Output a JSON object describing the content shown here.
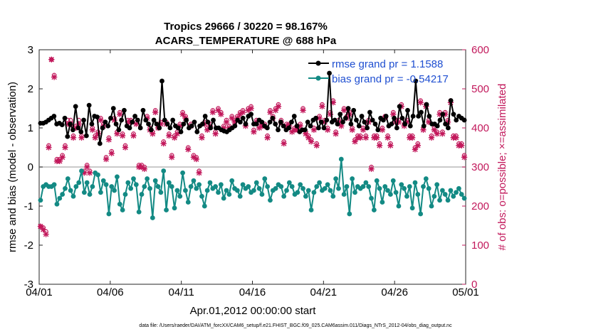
{
  "chart_data": {
    "type": "line",
    "title": "Tropics 29666 / 30220 = 98.167%",
    "subtitle": "ACARS_TEMPERATURE @ 688 hPa",
    "xlabel": "Apr.01,2012 00:00:00 start",
    "ylabel": "rmse and bias (model - observation)",
    "ylabel_right": "# of obs: o=possible; ×=assimilated",
    "footer": "data file: /Users/raeder/DAI/ATM_forcXX/CAM6_setup/f.e21.FHIST_BGC.f09_025.CAM6assim.011/Diags_NTrS_2012-04/obs_diag_output.nc",
    "xlim": [
      0,
      30
    ],
    "ylim": [
      -3,
      3
    ],
    "ylim_right": [
      0,
      600
    ],
    "x_tick_values": [
      0,
      5,
      10,
      15,
      20,
      25,
      30
    ],
    "x_tick_labels": [
      "04/01",
      "04/06",
      "04/11",
      "04/16",
      "04/21",
      "04/26",
      "05/01"
    ],
    "y_ticks": [
      "-3",
      "-2",
      "-1",
      "0",
      "1",
      "2",
      "3"
    ],
    "y_ticks_right": [
      "0",
      "100",
      "200",
      "300",
      "400",
      "500",
      "600"
    ],
    "legend": [
      "rmse grand pr = 1.1588",
      "bias grand pr = -0.54217"
    ],
    "colors": {
      "rmse": "#000000",
      "bias": "#138a84",
      "obs": "#c2185b",
      "zero": "#b8b8b8"
    },
    "series": [
      {
        "name": "rmse",
        "values": [
          1.12,
          1.12,
          1.15,
          1.2,
          1.25,
          1.3,
          1.1,
          1.12,
          1.08,
          1.25,
          0.78,
          1.1,
          0.95,
          1.55,
          1.0,
          0.9,
          1.2,
          0.8,
          1.58,
          1.1,
          1.3,
          1.28,
          0.6,
          1.0,
          1.15,
          1.05,
          1.25,
          1.5,
          1.1,
          0.95,
          1.2,
          1.45,
          1.05,
          1.0,
          1.15,
          1.3,
          1.2,
          1.0,
          1.45,
          1.2,
          1.1,
          0.95,
          1.2,
          1.1,
          1.0,
          2.2,
          1.2,
          1.1,
          1.0,
          1.2,
          1.05,
          1.0,
          0.9,
          1.1,
          1.2,
          1.0,
          1.05,
          1.15,
          0.9,
          1.05,
          1.1,
          1.3,
          1.15,
          1.0,
          1.2,
          1.0,
          1.0,
          0.95,
          0.92,
          0.9,
          0.95,
          1.0,
          1.05,
          1.2,
          1.15,
          1.25,
          1.1,
          1.3,
          1.35,
          1.1,
          1.1,
          1.2,
          1.15,
          1.05,
          1.0,
          1.15,
          1.25,
          1.1,
          0.95,
          1.15,
          1.05,
          0.95,
          1.0,
          1.15,
          1.3,
          1.05,
          0.9,
          0.95,
          0.95,
          1.15,
          1.05,
          1.2,
          1.25,
          1.0,
          1.15,
          1.0,
          1.2,
          2.4,
          1.15,
          1.2,
          1.1,
          1.35,
          1.15,
          1.25,
          1.5,
          1.1,
          1.45,
          1.2,
          1.05,
          1.3,
          1.15,
          1.0,
          1.4,
          1.2,
          1.1,
          0.95,
          1.25,
          1.2,
          1.3,
          1.05,
          1.1,
          1.25,
          1.0,
          1.55,
          1.25,
          1.1,
          1.45,
          1.05,
          1.3,
          2.2,
          1.3,
          1.4,
          1.05,
          1.6,
          1.3,
          1.1,
          1.1,
          1.05,
          1.2,
          1.35,
          1.1,
          1.0,
          1.7,
          1.35,
          1.2,
          1.3,
          1.25,
          1.2
        ]
      },
      {
        "name": "bias",
        "values": [
          -0.85,
          -0.5,
          -0.45,
          -0.5,
          -0.5,
          -0.45,
          -0.95,
          -0.8,
          -0.7,
          -0.55,
          -0.3,
          -0.6,
          -0.75,
          -0.5,
          -0.4,
          -0.1,
          -0.65,
          -0.4,
          -0.7,
          -0.5,
          -0.15,
          -0.2,
          -0.65,
          -0.35,
          -0.45,
          -1.2,
          -0.5,
          -0.6,
          -0.25,
          -0.95,
          -1.1,
          -0.7,
          -0.4,
          -0.55,
          -0.3,
          -0.45,
          -1.15,
          -0.7,
          -0.5,
          -0.3,
          -0.55,
          -1.3,
          -0.35,
          -0.5,
          -0.65,
          -0.1,
          -1.1,
          -0.4,
          -0.5,
          -1.05,
          -0.6,
          -0.75,
          -0.15,
          -0.6,
          -0.9,
          -0.5,
          -0.35,
          -0.55,
          -0.45,
          -0.75,
          -1.0,
          -0.6,
          -0.4,
          -0.55,
          -0.5,
          -0.65,
          -0.45,
          -0.8,
          -0.6,
          -0.7,
          -0.35,
          -0.55,
          -0.6,
          -0.75,
          -0.45,
          -0.55,
          -0.5,
          -0.65,
          -0.6,
          -0.4,
          -0.55,
          -0.7,
          -0.3,
          -0.5,
          -0.85,
          -0.6,
          -0.55,
          -0.45,
          -0.5,
          -0.75,
          -0.6,
          -0.4,
          -0.5,
          -0.7,
          -0.65,
          -0.45,
          -0.55,
          -0.75,
          -0.6,
          -1.1,
          -0.65,
          -0.5,
          -0.4,
          -0.6,
          -0.55,
          -0.45,
          -0.6,
          -0.75,
          -0.3,
          -0.55,
          0.2,
          -0.7,
          -0.5,
          -1.2,
          -0.3,
          -0.65,
          -0.5,
          -0.55,
          -0.5,
          -0.4,
          -0.5,
          -0.8,
          -1.1,
          -0.35,
          -0.55,
          -0.9,
          -0.5,
          -0.6,
          -0.7,
          -0.35,
          -0.65,
          -1.0,
          -0.45,
          -0.55,
          -0.75,
          -0.5,
          -1.05,
          -0.4,
          -0.7,
          -1.2,
          -0.5,
          -0.3,
          -0.55,
          -1.0,
          -0.75,
          -0.45,
          -0.85,
          -0.6,
          -0.7,
          -0.85,
          -0.6,
          -0.75,
          -0.65,
          -0.55,
          -0.7,
          -0.8
        ]
      },
      {
        "name": "obs_possible",
        "values": [
          148,
          145,
          135,
          355,
          575,
          535,
          320,
          320,
          330,
          355,
          420,
          420,
          380,
          405,
          420,
          380,
          290,
          305,
          290,
          400,
          380,
          390,
          425,
          410,
          325,
          375,
          340,
          425,
          390,
          440,
          385,
          355,
          420,
          420,
          385,
          415,
          305,
          305,
          300,
          430,
          400,
          390,
          445,
          405,
          415,
          365,
          415,
          385,
          330,
          380,
          390,
          410,
          440,
          430,
          350,
          410,
          330,
          325,
          290,
          380,
          415,
          400,
          410,
          445,
          390,
          450,
          440,
          405,
          420,
          405,
          430,
          420,
          430,
          440,
          445,
          410,
          450,
          455,
          395,
          420,
          405,
          410,
          410,
          380,
          445,
          430,
          450,
          460,
          420,
          365,
          410,
          410,
          395,
          400,
          400,
          410,
          450,
          390,
          380,
          370,
          400,
          360,
          430,
          460,
          420,
          400,
          440,
          470,
          390,
          420,
          410,
          450,
          430,
          440,
          400,
          370,
          380,
          380,
          400,
          380,
          420,
          300,
          380,
          380,
          360,
          400,
          430,
          380,
          360,
          440,
          420,
          420,
          460,
          410,
          420,
          380,
          380,
          350,
          360,
          470,
          400,
          460,
          420,
          380,
          400,
          390,
          440,
          390,
          440,
          420,
          470,
          380,
          380,
          360,
          360,
          330
        ]
      },
      {
        "name": "obs_assimilated",
        "values": [
          148,
          140,
          128,
          350,
          575,
          530,
          315,
          315,
          325,
          350,
          410,
          410,
          375,
          400,
          410,
          375,
          285,
          300,
          285,
          395,
          375,
          385,
          420,
          405,
          320,
          370,
          335,
          420,
          385,
          435,
          380,
          350,
          415,
          415,
          380,
          410,
          300,
          300,
          295,
          425,
          395,
          385,
          440,
          400,
          410,
          360,
          410,
          380,
          325,
          375,
          385,
          405,
          435,
          425,
          345,
          405,
          325,
          320,
          285,
          375,
          410,
          395,
          405,
          440,
          385,
          445,
          435,
          400,
          415,
          400,
          425,
          415,
          425,
          435,
          440,
          405,
          445,
          450,
          390,
          415,
          400,
          405,
          405,
          375,
          440,
          425,
          445,
          455,
          415,
          360,
          405,
          405,
          390,
          395,
          395,
          405,
          445,
          385,
          375,
          365,
          395,
          355,
          425,
          455,
          415,
          395,
          435,
          465,
          385,
          415,
          405,
          445,
          425,
          435,
          395,
          365,
          375,
          375,
          395,
          375,
          415,
          295,
          375,
          375,
          355,
          395,
          425,
          375,
          355,
          435,
          415,
          415,
          455,
          405,
          415,
          375,
          375,
          345,
          355,
          465,
          395,
          455,
          415,
          375,
          395,
          385,
          435,
          385,
          435,
          415,
          465,
          375,
          375,
          355,
          355,
          325
        ]
      }
    ]
  }
}
